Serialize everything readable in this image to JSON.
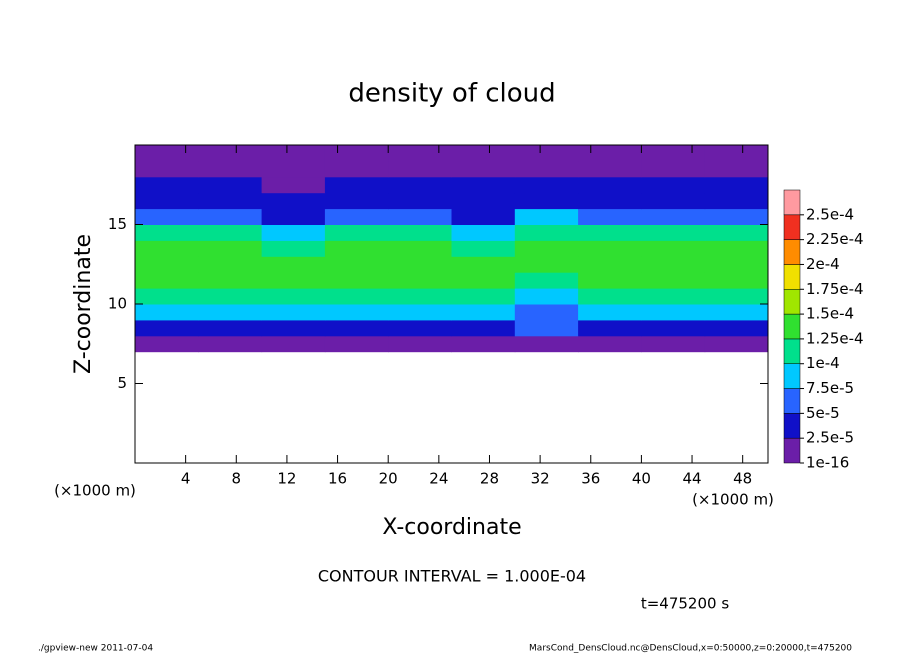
{
  "chart_data": {
    "type": "heatmap",
    "title": "density of cloud",
    "x_label": "X-coordinate",
    "y_label": "Z-coordinate",
    "x_unit_left": "(×1000 m)",
    "x_unit_right": "(×1000 m)",
    "contour_note": "CONTOUR INTERVAL = 1.000E-04",
    "time_note": "t=475200 s",
    "footer_left": "./gpview-new  2011-07-04",
    "footer_right": "MarsCond_DensCloud.nc@DensCloud,x=0:50000,z=0:20000,t=475200",
    "xlim": [
      0,
      50
    ],
    "ylim": [
      0,
      20
    ],
    "xticks": [
      4,
      8,
      12,
      16,
      20,
      24,
      28,
      32,
      36,
      40,
      44,
      48
    ],
    "yticks": [
      5,
      10,
      15
    ],
    "xbins": [
      0,
      5,
      10,
      15,
      20,
      25,
      30,
      35,
      40,
      45,
      50
    ],
    "zbins": [
      7,
      8,
      9,
      10,
      11,
      12,
      13,
      14,
      15,
      16,
      17,
      18,
      19,
      20
    ],
    "z": [
      [
        1e-05,
        1e-05,
        1e-05,
        1e-05,
        1e-05,
        1e-05,
        2e-05,
        1e-05,
        1e-05,
        1e-05
      ],
      [
        4e-05,
        4e-05,
        4e-05,
        4e-05,
        4e-05,
        4e-05,
        5e-05,
        4e-05,
        4e-05,
        4e-05
      ],
      [
        8e-05,
        8e-05,
        8e-05,
        8e-05,
        8e-05,
        8e-05,
        7e-05,
        8e-05,
        8e-05,
        8e-05
      ],
      [
        0.000105,
        0.000105,
        0.000105,
        0.000105,
        0.000105,
        0.0001,
        9e-05,
        0.000105,
        0.000105,
        0.000105
      ],
      [
        0.00013,
        0.00013,
        0.00013,
        0.00013,
        0.00013,
        0.000125,
        0.00012,
        0.00013,
        0.00013,
        0.00013
      ],
      [
        0.00014,
        0.00014,
        0.000135,
        0.00014,
        0.00014,
        0.000135,
        0.00013,
        0.000135,
        0.000135,
        0.000135
      ],
      [
        0.00013,
        0.00013,
        0.00012,
        0.00013,
        0.000135,
        0.00012,
        0.00013,
        0.00013,
        0.00013,
        0.00013
      ],
      [
        0.00011,
        0.000105,
        8e-05,
        0.00011,
        0.000115,
        9e-05,
        0.00011,
        0.00011,
        0.00011,
        0.00011
      ],
      [
        6e-05,
        5e-05,
        4e-05,
        5e-05,
        6e-05,
        4e-05,
        8e-05,
        7e-05,
        7e-05,
        7e-05
      ],
      [
        4e-05,
        3.5e-05,
        3e-05,
        3e-05,
        3e-05,
        3e-05,
        4e-05,
        4e-05,
        4e-05,
        4e-05
      ],
      [
        3e-05,
        2.5e-05,
        2e-05,
        2.5e-05,
        2.5e-05,
        2.5e-05,
        2.5e-05,
        3e-05,
        3e-05,
        3e-05
      ],
      [
        2e-05,
        1.5e-05,
        1.5e-05,
        2e-05,
        2e-05,
        2e-05,
        2e-05,
        2e-05,
        2e-05,
        2e-05
      ],
      [
        1.5e-05,
        1e-05,
        1e-05,
        1e-05,
        1.5e-05,
        1.5e-05,
        1.5e-05,
        1.5e-05,
        1.5e-05,
        1.5e-05
      ]
    ],
    "levels": [
      {
        "value": 1e-16,
        "label": "1e-16"
      },
      {
        "value": 2.5e-05,
        "label": "2.5e-5"
      },
      {
        "value": 5e-05,
        "label": "5e-5"
      },
      {
        "value": 7.5e-05,
        "label": "7.5e-5"
      },
      {
        "value": 0.0001,
        "label": "1e-4"
      },
      {
        "value": 0.000125,
        "label": "1.25e-4"
      },
      {
        "value": 0.00015,
        "label": "1.5e-4"
      },
      {
        "value": 0.000175,
        "label": "1.75e-4"
      },
      {
        "value": 0.0002,
        "label": "2e-4"
      },
      {
        "value": 0.000225,
        "label": "2.25e-4"
      },
      {
        "value": 0.00025,
        "label": "2.5e-4"
      }
    ],
    "colors": [
      "#6b1ea8",
      "#1010c8",
      "#2864ff",
      "#00c8ff",
      "#00e08c",
      "#30e030",
      "#a0e600",
      "#f0e000",
      "#ff8c00",
      "#f03020",
      "#ff9aa0"
    ]
  }
}
